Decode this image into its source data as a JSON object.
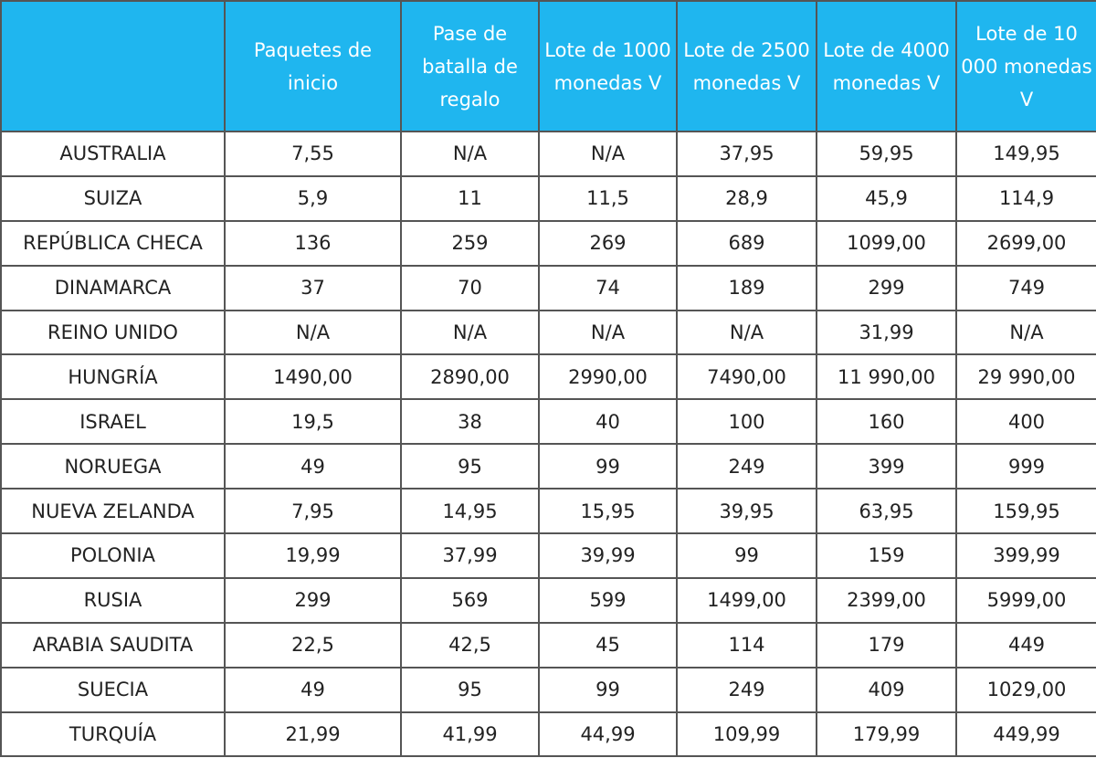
{
  "table": {
    "headers": [
      "",
      "Paquetes de inicio",
      "Pase de batalla de regalo",
      "Lote de 1000 monedas V",
      "Lote de 2500 monedas V",
      "Lote de 4000 monedas V",
      "Lote de 10 000 monedas V"
    ],
    "rows": [
      [
        "AUSTRALIA",
        "7,55",
        "N/A",
        "N/A",
        "37,95",
        "59,95",
        "149,95"
      ],
      [
        "SUIZA",
        "5,9",
        "11",
        "11,5",
        "28,9",
        "45,9",
        "114,9"
      ],
      [
        "REPÚBLICA CHECA",
        "136",
        "259",
        "269",
        "689",
        "1099,00",
        "2699,00"
      ],
      [
        "DINAMARCA",
        "37",
        "70",
        "74",
        "189",
        "299",
        "749"
      ],
      [
        "REINO UNIDO",
        "N/A",
        "N/A",
        "N/A",
        "N/A",
        "31,99",
        "N/A"
      ],
      [
        "HUNGRÍA",
        "1490,00",
        "2890,00",
        "2990,00",
        "7490,00",
        "11 990,00",
        "29 990,00"
      ],
      [
        "ISRAEL",
        "19,5",
        "38",
        "40",
        "100",
        "160",
        "400"
      ],
      [
        "NORUEGA",
        "49",
        "95",
        "99",
        "249",
        "399",
        "999"
      ],
      [
        "NUEVA ZELANDA",
        "7,95",
        "14,95",
        "15,95",
        "39,95",
        "63,95",
        "159,95"
      ],
      [
        "POLONIA",
        "19,99",
        "37,99",
        "39,99",
        "99",
        "159",
        "399,99"
      ],
      [
        "RUSIA",
        "299",
        "569",
        "599",
        "1499,00",
        "2399,00",
        "5999,00"
      ],
      [
        "ARABIA SAUDITA",
        "22,5",
        "42,5",
        "45",
        "114",
        "179",
        "449"
      ],
      [
        "SUECIA",
        "49",
        "95",
        "99",
        "249",
        "409",
        "1029,00"
      ],
      [
        "TURQUÍA",
        "21,99",
        "41,99",
        "44,99",
        "109,99",
        "179,99",
        "449,99"
      ]
    ]
  },
  "colors": {
    "header_background": "#1fb6ef",
    "header_text": "#ffffff",
    "border": "#555555",
    "cell_text": "#222222"
  }
}
